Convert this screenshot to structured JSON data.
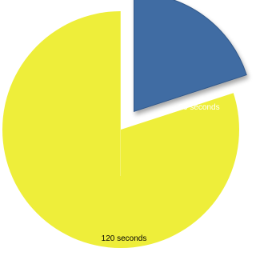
{
  "chart_data": {
    "type": "pie",
    "slices": [
      {
        "label": "120 seconds",
        "value": 120,
        "color": "#eeee3a",
        "exploded": false,
        "label_color": "#000000"
      },
      {
        "label": "30 seconds",
        "value": 30,
        "color": "#3f6ca3",
        "exploded": true,
        "label_color": "#ffffff"
      }
    ],
    "start_angle_deg": 0,
    "direction": "clockwise",
    "legend": "none"
  }
}
